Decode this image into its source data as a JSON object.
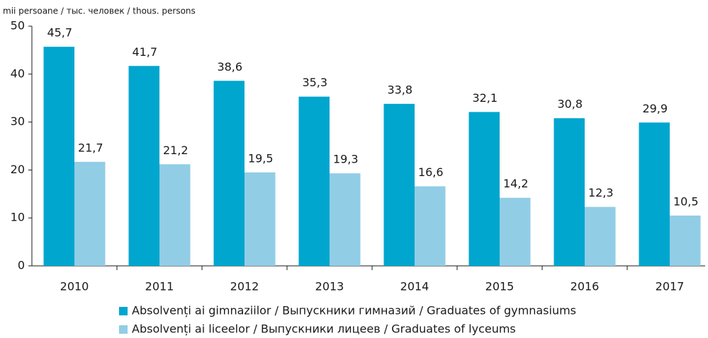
{
  "chart_data": {
    "type": "bar",
    "y_axis_label": "mii persoane / тыс. человек / thous. persons",
    "categories": [
      "2010",
      "2011",
      "2012",
      "2013",
      "2014",
      "2015",
      "2016",
      "2017"
    ],
    "series": [
      {
        "name": "Absolvenți ai gimnaziilor / Выпускники гимназий / Graduates of gymnasiums",
        "color": "#00a6ce",
        "values": [
          45.7,
          41.7,
          38.6,
          35.3,
          33.8,
          32.1,
          30.8,
          29.9
        ],
        "value_labels": [
          "45,7",
          "41,7",
          "38,6",
          "35,3",
          "33,8",
          "32,1",
          "30,8",
          "29,9"
        ]
      },
      {
        "name": "Absolvenți ai liceelor / Выпускники лицеев / Graduates of lyceums",
        "color": "#92cde6",
        "values": [
          21.7,
          21.2,
          19.5,
          19.3,
          16.6,
          14.2,
          12.3,
          10.5
        ],
        "value_labels": [
          "21,7",
          "21,2",
          "19,5",
          "19,3",
          "16,6",
          "14,2",
          "12,3",
          "10,5"
        ]
      }
    ],
    "ylim": [
      0,
      50
    ],
    "yticks": [
      0,
      10,
      20,
      30,
      40,
      50
    ],
    "grid": false,
    "legend": "bottom"
  }
}
